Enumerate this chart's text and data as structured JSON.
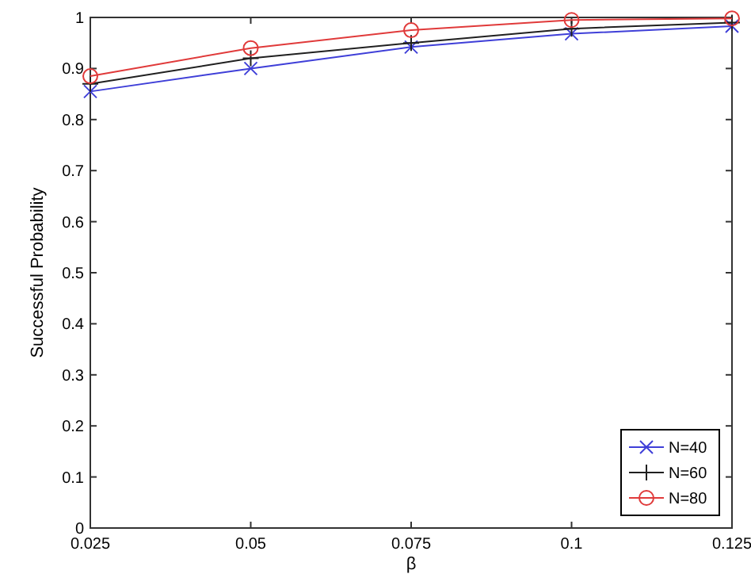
{
  "chart_data": {
    "type": "line",
    "xlabel": "β",
    "ylabel": "Successful Probability",
    "x": [
      0.025,
      0.05,
      0.075,
      0.1,
      0.125
    ],
    "xlim": [
      0.025,
      0.125
    ],
    "xticks": [
      0.025,
      0.05,
      0.075,
      0.1,
      0.125
    ],
    "ylim": [
      0,
      1
    ],
    "yticks": [
      0,
      0.1,
      0.2,
      0.3,
      0.4,
      0.5,
      0.6,
      0.7,
      0.8,
      0.9,
      1
    ],
    "legend": "bottom right",
    "grid": false,
    "line_style": "solid",
    "series": [
      {
        "name": "N=40",
        "color": "#3f3fd8",
        "marker": "x",
        "values": [
          0.855,
          0.9,
          0.942,
          0.968,
          0.983
        ]
      },
      {
        "name": "N=60",
        "color": "#202020",
        "marker": "cross",
        "values": [
          0.87,
          0.92,
          0.95,
          0.978,
          0.99
        ]
      },
      {
        "name": "N=80",
        "color": "#e03a3a",
        "marker": "circle",
        "values": [
          0.885,
          0.94,
          0.975,
          0.995,
          0.998
        ]
      }
    ]
  }
}
